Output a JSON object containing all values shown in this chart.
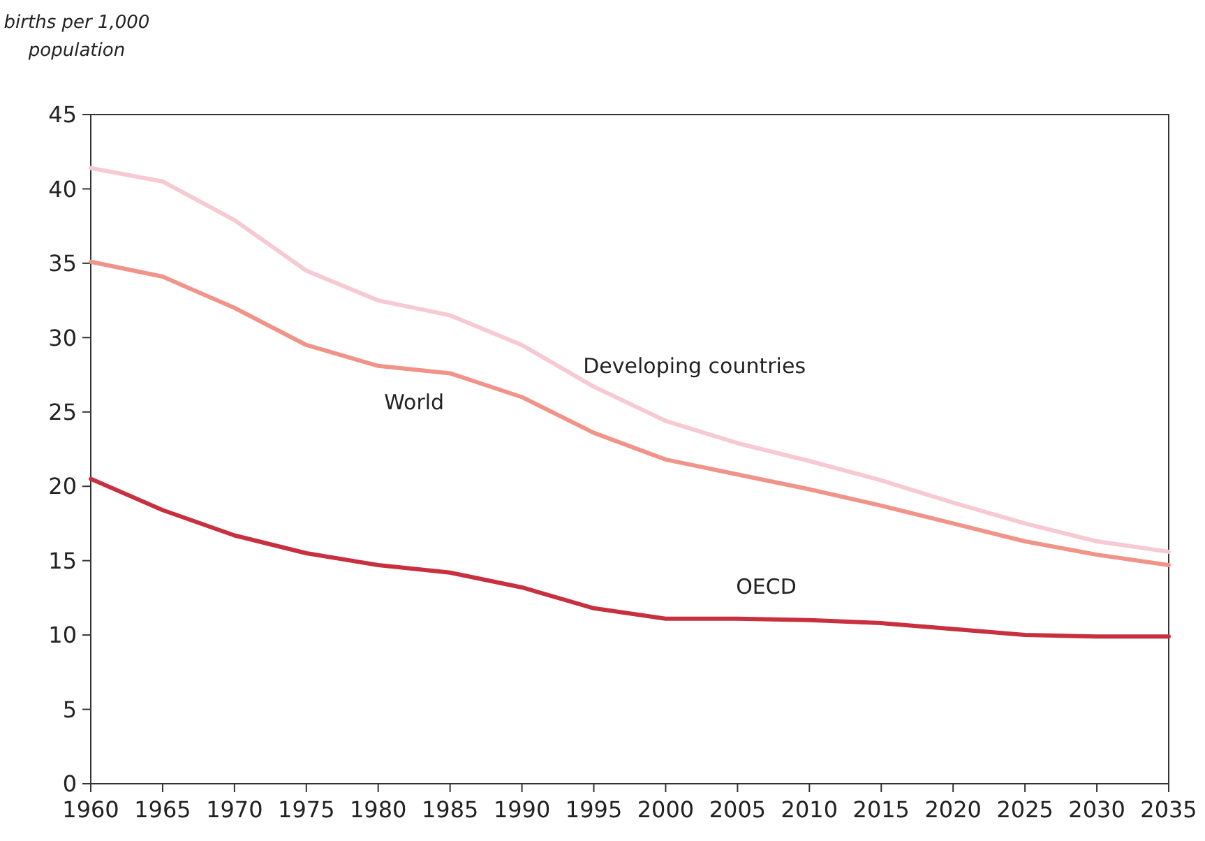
{
  "chart_data": {
    "type": "line",
    "ylabel": "births per 1,000 population",
    "x": [
      1960,
      1965,
      1970,
      1975,
      1980,
      1985,
      1990,
      1995,
      2000,
      2005,
      2010,
      2015,
      2020,
      2025,
      2030,
      2035
    ],
    "series": [
      {
        "name": "Developing countries",
        "color": "#f7c9d3",
        "values": [
          41.4,
          40.5,
          37.9,
          34.5,
          32.5,
          31.5,
          29.5,
          26.7,
          24.4,
          22.9,
          21.7,
          20.4,
          18.9,
          17.5,
          16.3,
          15.6
        ]
      },
      {
        "name": "World",
        "color": "#f0948a",
        "values": [
          35.1,
          34.1,
          32.0,
          29.5,
          28.1,
          27.6,
          26.0,
          23.6,
          21.8,
          20.8,
          19.8,
          18.7,
          17.5,
          16.3,
          15.4,
          14.7
        ]
      },
      {
        "name": "OECD",
        "color": "#c8303f",
        "values": [
          20.5,
          18.4,
          16.7,
          15.5,
          14.7,
          14.2,
          13.2,
          11.8,
          11.1,
          11.1,
          11.0,
          10.8,
          10.4,
          10.0,
          9.9,
          9.9
        ]
      }
    ],
    "xlim": [
      1960,
      2035
    ],
    "xticks": [
      1960,
      1965,
      1970,
      1975,
      1980,
      1985,
      1990,
      1995,
      2000,
      2005,
      2010,
      2015,
      2020,
      2025,
      2030,
      2035
    ],
    "ylim": [
      0,
      45
    ],
    "yticks": [
      0,
      5,
      10,
      15,
      20,
      25,
      30,
      35,
      40,
      45
    ],
    "grid": false,
    "legend": false,
    "marker": "none",
    "line_style": "solid"
  }
}
